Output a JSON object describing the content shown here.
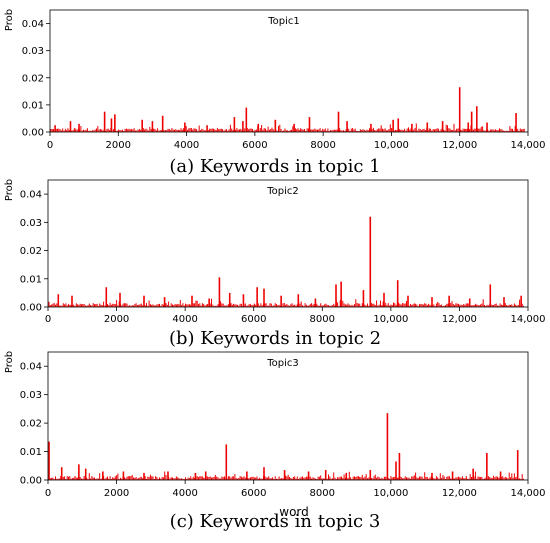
{
  "chart_data": [
    {
      "type": "bar",
      "title": "Topic1",
      "ylabel": "Prob",
      "xlabel": "",
      "caption": "(a) Keywords in topic 1",
      "xlim": [
        0,
        14000
      ],
      "ylim": [
        0,
        0.045
      ],
      "xticks": [
        0,
        2000,
        4000,
        6000,
        8000,
        10000,
        12000,
        14000
      ],
      "xtick_labels": [
        "0",
        "2000",
        "4000",
        "6000",
        "8000",
        "10,000",
        "12,000",
        "14,000"
      ],
      "yticks": [
        0,
        0.01,
        0.02,
        0.03,
        0.04
      ],
      "ytick_labels": [
        "0.00",
        "0.01",
        "0.02",
        "0.03",
        "0.04"
      ],
      "color": "#ee0000",
      "peaks": [
        {
          "x": 150,
          "y": 0.0025
        },
        {
          "x": 600,
          "y": 0.004
        },
        {
          "x": 850,
          "y": 0.003
        },
        {
          "x": 1600,
          "y": 0.0075
        },
        {
          "x": 1800,
          "y": 0.005
        },
        {
          "x": 1900,
          "y": 0.0065
        },
        {
          "x": 2700,
          "y": 0.0045
        },
        {
          "x": 3000,
          "y": 0.004
        },
        {
          "x": 3300,
          "y": 0.006
        },
        {
          "x": 3950,
          "y": 0.0035
        },
        {
          "x": 4600,
          "y": 0.0025
        },
        {
          "x": 5400,
          "y": 0.0055
        },
        {
          "x": 5650,
          "y": 0.004
        },
        {
          "x": 5750,
          "y": 0.009
        },
        {
          "x": 6100,
          "y": 0.003
        },
        {
          "x": 6600,
          "y": 0.0045
        },
        {
          "x": 7150,
          "y": 0.003
        },
        {
          "x": 7600,
          "y": 0.0055
        },
        {
          "x": 8450,
          "y": 0.0075
        },
        {
          "x": 8700,
          "y": 0.004
        },
        {
          "x": 9400,
          "y": 0.003
        },
        {
          "x": 10050,
          "y": 0.0045
        },
        {
          "x": 10200,
          "y": 0.005
        },
        {
          "x": 10600,
          "y": 0.003
        },
        {
          "x": 11050,
          "y": 0.0035
        },
        {
          "x": 11500,
          "y": 0.004
        },
        {
          "x": 12000,
          "y": 0.0165
        },
        {
          "x": 12250,
          "y": 0.0035
        },
        {
          "x": 12350,
          "y": 0.0075
        },
        {
          "x": 12500,
          "y": 0.0095
        },
        {
          "x": 12800,
          "y": 0.0035
        },
        {
          "x": 13650,
          "y": 0.007
        }
      ]
    },
    {
      "type": "bar",
      "title": "Topic2",
      "ylabel": "Prob",
      "xlabel": "",
      "caption": "(b) Keywords in topic 2",
      "xlim": [
        0,
        14000
      ],
      "ylim": [
        0,
        0.045
      ],
      "xticks": [
        0,
        2000,
        4000,
        6000,
        8000,
        10000,
        12000,
        14000
      ],
      "xtick_labels": [
        "0",
        "2000",
        "4000",
        "6000",
        "8000",
        "10,000",
        "12,000",
        "14,000"
      ],
      "yticks": [
        0,
        0.01,
        0.02,
        0.03,
        0.04
      ],
      "ytick_labels": [
        "0.00",
        "0.01",
        "0.02",
        "0.03",
        "0.04"
      ],
      "color": "#ee0000",
      "peaks": [
        {
          "x": 300,
          "y": 0.0045
        },
        {
          "x": 700,
          "y": 0.004
        },
        {
          "x": 1700,
          "y": 0.007
        },
        {
          "x": 2100,
          "y": 0.005
        },
        {
          "x": 2800,
          "y": 0.004
        },
        {
          "x": 3400,
          "y": 0.0035
        },
        {
          "x": 4200,
          "y": 0.004
        },
        {
          "x": 4700,
          "y": 0.003
        },
        {
          "x": 5000,
          "y": 0.0105
        },
        {
          "x": 5300,
          "y": 0.005
        },
        {
          "x": 5700,
          "y": 0.0045
        },
        {
          "x": 6100,
          "y": 0.007
        },
        {
          "x": 6300,
          "y": 0.0065
        },
        {
          "x": 6800,
          "y": 0.004
        },
        {
          "x": 7300,
          "y": 0.0045
        },
        {
          "x": 7800,
          "y": 0.003
        },
        {
          "x": 8400,
          "y": 0.008
        },
        {
          "x": 8550,
          "y": 0.009
        },
        {
          "x": 9200,
          "y": 0.006
        },
        {
          "x": 9400,
          "y": 0.032
        },
        {
          "x": 9800,
          "y": 0.005
        },
        {
          "x": 10200,
          "y": 0.0095
        },
        {
          "x": 10500,
          "y": 0.004
        },
        {
          "x": 11200,
          "y": 0.0035
        },
        {
          "x": 11700,
          "y": 0.004
        },
        {
          "x": 12300,
          "y": 0.003
        },
        {
          "x": 12900,
          "y": 0.008
        },
        {
          "x": 13300,
          "y": 0.0035
        },
        {
          "x": 13800,
          "y": 0.004
        }
      ]
    },
    {
      "type": "bar",
      "title": "Topic3",
      "ylabel": "Prob",
      "xlabel": "word",
      "caption": "(c) Keywords in topic 3",
      "xlim": [
        0,
        14000
      ],
      "ylim": [
        0,
        0.045
      ],
      "xticks": [
        0,
        2000,
        4000,
        6000,
        8000,
        10000,
        12000,
        14000
      ],
      "xtick_labels": [
        "0",
        "2000",
        "4000",
        "6000",
        "8000",
        "10,000",
        "12,000",
        "14,000"
      ],
      "yticks": [
        0,
        0.01,
        0.02,
        0.03,
        0.04
      ],
      "ytick_labels": [
        "0.00",
        "0.01",
        "0.02",
        "0.03",
        "0.04"
      ],
      "color": "#ee0000",
      "peaks": [
        {
          "x": 30,
          "y": 0.0135
        },
        {
          "x": 400,
          "y": 0.0045
        },
        {
          "x": 900,
          "y": 0.0055
        },
        {
          "x": 1100,
          "y": 0.004
        },
        {
          "x": 1600,
          "y": 0.003
        },
        {
          "x": 2200,
          "y": 0.003
        },
        {
          "x": 2800,
          "y": 0.0025
        },
        {
          "x": 3500,
          "y": 0.003
        },
        {
          "x": 4300,
          "y": 0.0025
        },
        {
          "x": 4600,
          "y": 0.003
        },
        {
          "x": 5200,
          "y": 0.0125
        },
        {
          "x": 5800,
          "y": 0.003
        },
        {
          "x": 6300,
          "y": 0.0045
        },
        {
          "x": 6900,
          "y": 0.0035
        },
        {
          "x": 7600,
          "y": 0.003
        },
        {
          "x": 8100,
          "y": 0.0035
        },
        {
          "x": 8700,
          "y": 0.0025
        },
        {
          "x": 9400,
          "y": 0.0035
        },
        {
          "x": 9900,
          "y": 0.0235
        },
        {
          "x": 10150,
          "y": 0.0065
        },
        {
          "x": 10250,
          "y": 0.0095
        },
        {
          "x": 11200,
          "y": 0.0025
        },
        {
          "x": 11800,
          "y": 0.003
        },
        {
          "x": 12400,
          "y": 0.004
        },
        {
          "x": 12800,
          "y": 0.0095
        },
        {
          "x": 13200,
          "y": 0.003
        },
        {
          "x": 13700,
          "y": 0.0105
        }
      ]
    }
  ]
}
